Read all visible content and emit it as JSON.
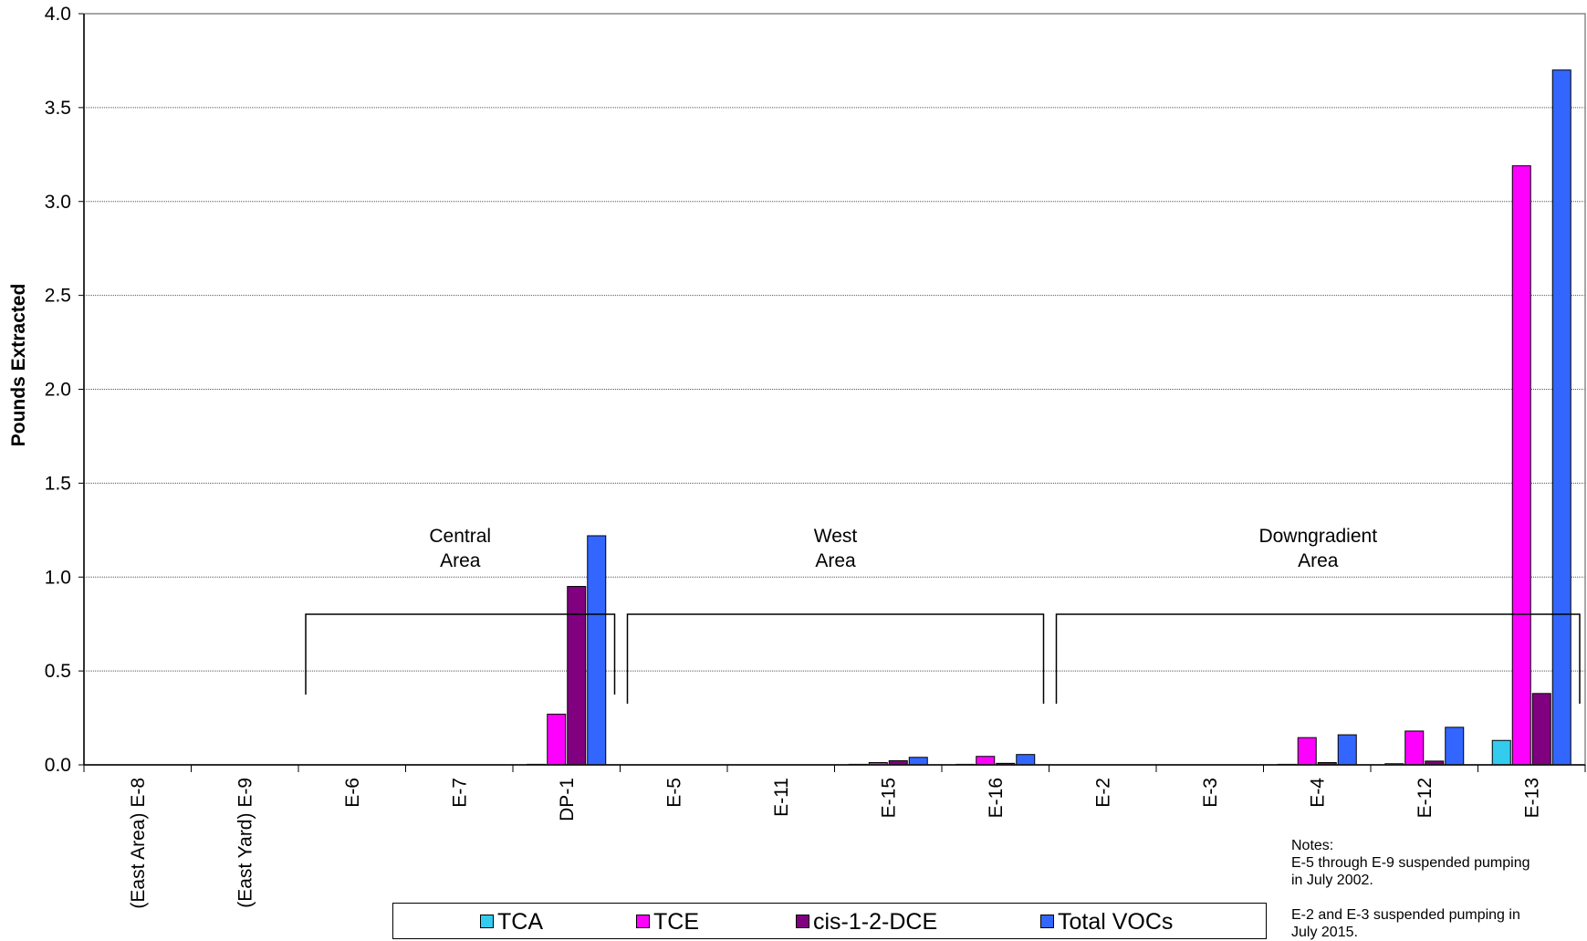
{
  "chart_data": {
    "type": "bar",
    "ylabel": "Pounds  Extracted",
    "ylim": [
      0,
      4.0
    ],
    "yticks": [
      "0.0",
      "0.5",
      "1.0",
      "1.5",
      "2.0",
      "2.5",
      "3.0",
      "3.5",
      "4.0"
    ],
    "categories": [
      "(East Area) E-8",
      "(East Yard) E-9",
      "E-6",
      "E-7",
      "DP-1",
      "E-5",
      "E-11",
      "E-15",
      "E-16",
      "E-2",
      "E-3",
      "E-4",
      "E-12",
      "E-13"
    ],
    "series": [
      {
        "name": "TCA",
        "color": "#33CCEE",
        "values": [
          0,
          0,
          0,
          0,
          0.003,
          0,
          0,
          0.002,
          0.001,
          0,
          0,
          0.002,
          0.006,
          0.13
        ]
      },
      {
        "name": "TCE",
        "color": "#FF00FF",
        "values": [
          0,
          0,
          0,
          0,
          0.27,
          0,
          0,
          0.012,
          0.045,
          0,
          0,
          0.145,
          0.18,
          3.19
        ]
      },
      {
        "name": "cis-1-2-DCE",
        "color": "#800080",
        "values": [
          0,
          0,
          0,
          0,
          0.95,
          0,
          0,
          0.022,
          0.008,
          0,
          0,
          0.012,
          0.02,
          0.38
        ]
      },
      {
        "name": "Total VOCs",
        "color": "#3366FF",
        "values": [
          0,
          0,
          0,
          0,
          1.22,
          0,
          0,
          0.04,
          0.055,
          0,
          0,
          0.16,
          0.2,
          3.7
        ]
      }
    ],
    "grid": true,
    "legend": "bottom",
    "annotations": [
      {
        "lines": [
          "Central",
          "Area"
        ]
      },
      {
        "lines": [
          "West",
          "Area"
        ]
      },
      {
        "lines": [
          "Downgradient",
          "Area"
        ]
      }
    ]
  },
  "notes": {
    "title": "Notes:",
    "line1": "E-5 through E-9 suspended pumping",
    "line2": "in July 2002.",
    "line3": "E-2 and E-3 suspended pumping in",
    "line4": "July 2015."
  }
}
